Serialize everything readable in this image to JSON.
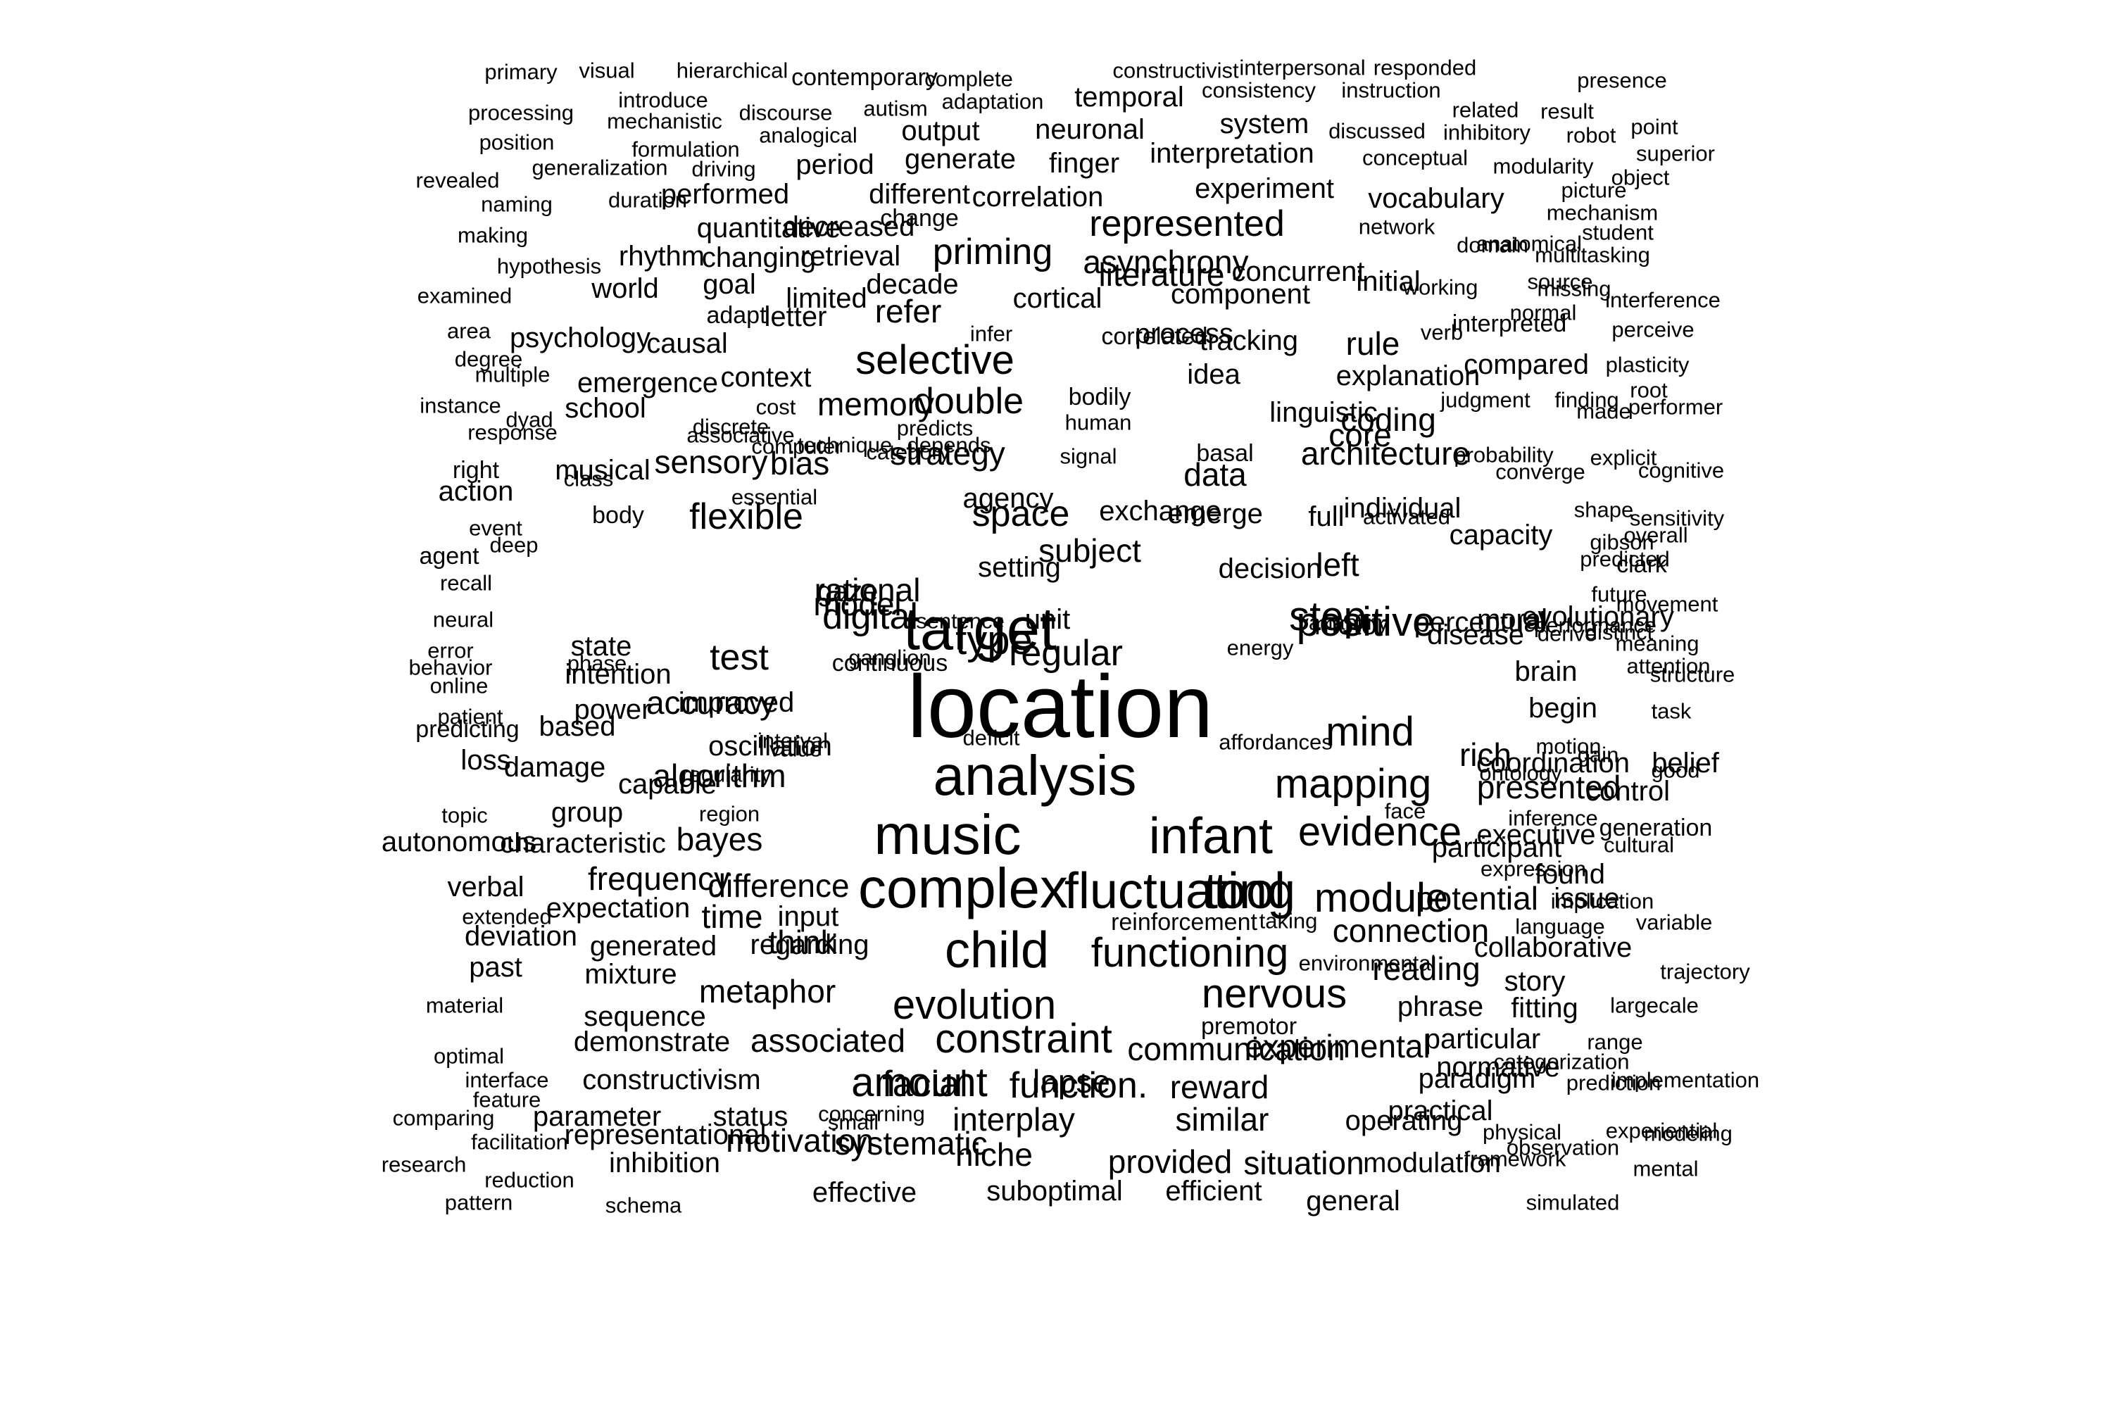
{
  "text_color": "#000000",
  "background_color": "#ffffff",
  "words": [
    "primary",
    "visual",
    "hierarchical",
    "contemporary",
    "complete",
    "constructivist",
    "interpersonal",
    "responded",
    "presence",
    "processing",
    "introduce",
    "discourse",
    "autism",
    "adaptation",
    "temporal",
    "consistency",
    "instruction",
    "related",
    "result",
    "mechanistic",
    "system",
    "discussed",
    "inhibitory",
    "robot",
    "point",
    "position",
    "analogical",
    "output",
    "neuronal",
    "formulation",
    "interpretation",
    "superior",
    "generalization",
    "driving",
    "period",
    "generate",
    "finger",
    "conceptual",
    "modularity",
    "object",
    "revealed",
    "performed",
    "different",
    "correlation",
    "experiment",
    "picture",
    "naming",
    "duration",
    "change",
    "vocabulary",
    "mechanism",
    "making",
    "quantitative",
    "decreased",
    "represented",
    "network",
    "student",
    "hypothesis",
    "rhythm",
    "changing",
    "retrieval",
    "priming",
    "asynchrony",
    "concurrent",
    "domain",
    "anatomical",
    "multitasking",
    "examined",
    "world",
    "goal",
    "limited",
    "decade",
    "cortical",
    "literature",
    "component",
    "initial",
    "working",
    "source",
    "missing",
    "interference",
    "area",
    "adapt",
    "letter",
    "refer",
    "infer",
    "process",
    "verb",
    "interpreted",
    "normal",
    "perceive",
    "degree",
    "psychology",
    "causal",
    "selective",
    "correlated",
    "tracking",
    "rule",
    "compared",
    "plasticity",
    "multiple",
    "explanation",
    "root",
    "instance",
    "emergence",
    "context",
    "memory",
    "double",
    "bodily",
    "idea",
    "coding",
    "judgment",
    "made",
    "dyad",
    "school",
    "discrete",
    "cost",
    "predicts",
    "human",
    "linguistic",
    "response",
    "associative",
    "core",
    "finding",
    "performer",
    "right",
    "musical",
    "sensory",
    "computer",
    "technique",
    "category",
    "depends",
    "strategy",
    "signal",
    "data",
    "basal",
    "architecture",
    "probability",
    "converge",
    "cognitive",
    "action",
    "class",
    "bias",
    "explicit",
    "shape",
    "essential",
    "space",
    "emerge",
    "individual",
    "sensitivity",
    "event",
    "body",
    "flexible",
    "agency",
    "exchange",
    "activated",
    "full",
    "capacity",
    "overall",
    "deep",
    "subject",
    "decision",
    "gibson",
    "predicted",
    "agent",
    "setting",
    "left",
    "clark",
    "future",
    "rational",
    "target",
    "step",
    "movement",
    "recall",
    "digital",
    "motor",
    "evolutionary",
    "variability",
    "moral",
    "distinct",
    "neural",
    "gaze",
    "unit",
    "disease",
    "derive",
    "meaning",
    "error",
    "state",
    "model",
    "type",
    "positive",
    "perceptual",
    "performance",
    "behavior",
    "phase",
    "sentence",
    "ganglion",
    "continuous",
    "attention",
    "online",
    "intention",
    "test",
    "regular",
    "energy",
    "brain",
    "structure",
    "patient",
    "power",
    "accuracy",
    "location",
    "begin",
    "task",
    "predicting",
    "based",
    "improved",
    "mind",
    "interval",
    "value",
    "motion",
    "gain",
    "loss",
    "oscillation",
    "affordances",
    "rich",
    "coordination",
    "belief",
    "deficit",
    "good",
    "regularity",
    "capable",
    "ontology",
    "damage",
    "algorithm",
    "analysis",
    "mapping",
    "presented",
    "control",
    "topic",
    "region",
    "face",
    "inference",
    "group",
    "generation",
    "autonomous",
    "characteristic",
    "bayes",
    "music",
    "infant",
    "evidence",
    "executive",
    "cultural",
    "expression",
    "participant",
    "frequency",
    "fluctuating",
    "difference",
    "complex",
    "tool",
    "module",
    "potential",
    "found",
    "verbal",
    "expectation",
    "time",
    "issue",
    "input",
    "implication",
    "extended",
    "regarding",
    "reinforcement",
    "taking",
    "language",
    "variable",
    "deviation",
    "think",
    "child",
    "connection",
    "functioning",
    "generated",
    "collaborative",
    "past",
    "environmental",
    "reading",
    "trajectory",
    "mixture",
    "story",
    "metaphor",
    "nervous",
    "evolution",
    "phrase",
    "fitting",
    "largecale",
    "material",
    "sequence",
    "premotor",
    "demonstrate",
    "associated",
    "constraint",
    "particular",
    "communication",
    "experimental",
    "range",
    "optimal",
    "categorization",
    "interface",
    "paradigm",
    "constructivism",
    "amount",
    "lapse",
    "normative",
    "implementation",
    "feature",
    "function.",
    "reward",
    "facial",
    "practical",
    "prediction",
    "comparing",
    "parameter",
    "status",
    "concerning",
    "interplay",
    "similar",
    "operating",
    "physical",
    "modeling",
    "facilitation",
    "representational",
    "motivation",
    "systematic",
    "experiential",
    "observation",
    "small",
    "niche",
    "provided",
    "situation",
    "modulation",
    "framework",
    "mental",
    "research",
    "reduction",
    "inhibition",
    "effective",
    "suboptimal",
    "efficient",
    "general",
    "simulated",
    "pattern",
    "schema"
  ]
}
